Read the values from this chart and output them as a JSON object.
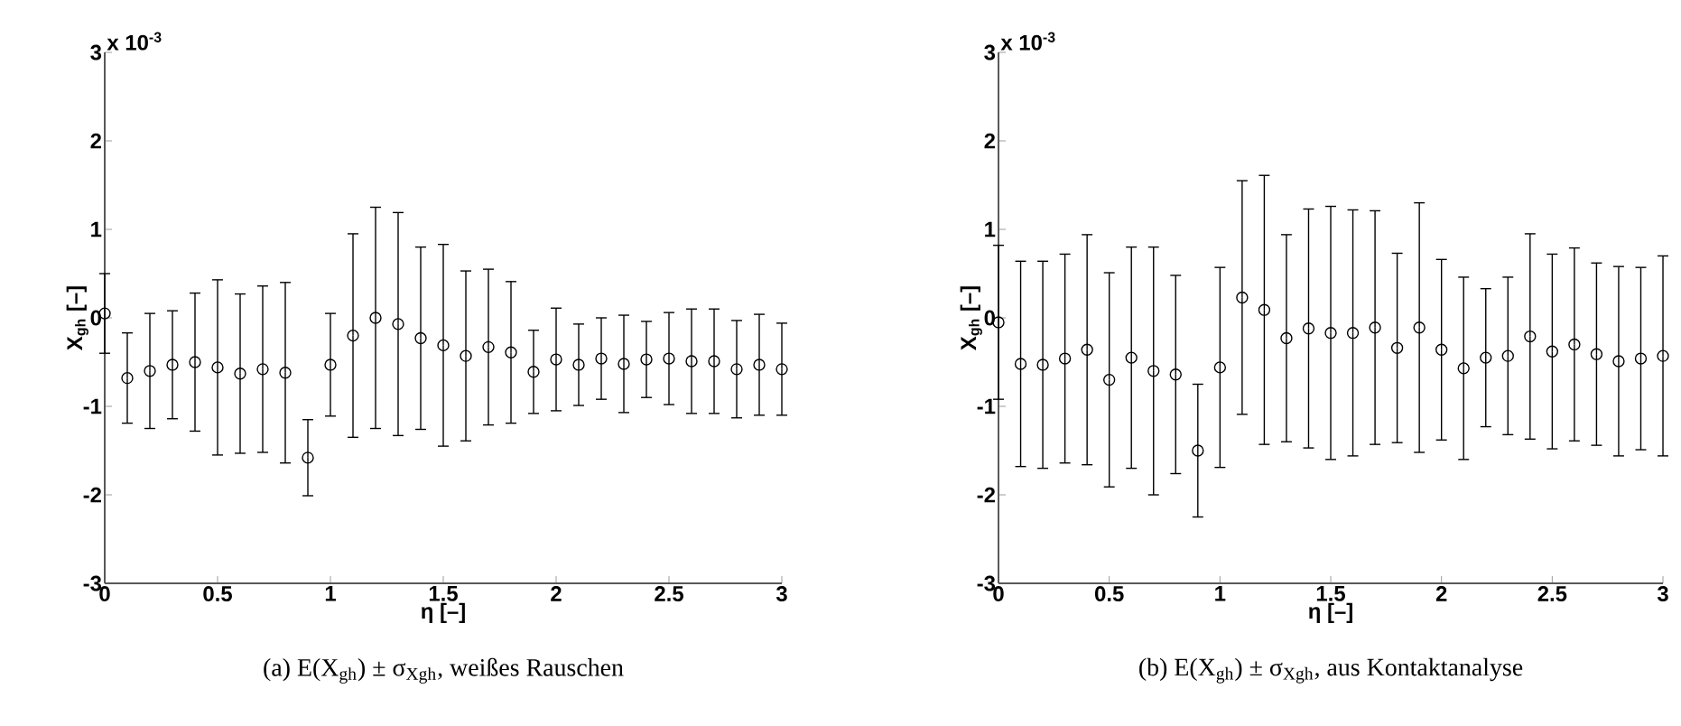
{
  "chart_data": [
    {
      "type": "scatter",
      "title": "(a) E(X$_{gh}$) ± σ$_{Xgh}$, weißes Rauschen",
      "xlabel": "η [–]",
      "ylabel": "X$_{gh}$ [–]",
      "annotations": [
        "x 10$^{-3}$"
      ],
      "x": [
        0,
        0.1,
        0.2,
        0.3,
        0.4,
        0.5,
        0.6,
        0.7,
        0.8,
        0.9,
        1.0,
        1.1,
        1.2,
        1.3,
        1.4,
        1.5,
        1.6,
        1.7,
        1.8,
        1.9,
        2.0,
        2.1,
        2.2,
        2.3,
        2.4,
        2.5,
        2.6,
        2.7,
        2.8,
        2.9,
        3.0
      ],
      "values": [
        0.05,
        -0.68,
        -0.6,
        -0.53,
        -0.5,
        -0.56,
        -0.63,
        -0.58,
        -0.62,
        -1.58,
        -0.53,
        -0.2,
        0.0,
        -0.07,
        -0.23,
        -0.31,
        -0.43,
        -0.33,
        -0.39,
        -0.61,
        -0.47,
        -0.53,
        -0.46,
        -0.52,
        -0.47,
        -0.46,
        -0.49,
        -0.49,
        -0.58,
        -0.53,
        -0.58
      ],
      "errors": [
        0.45,
        0.51,
        0.65,
        0.61,
        0.78,
        0.99,
        0.9,
        0.94,
        1.02,
        0.43,
        0.58,
        1.15,
        1.25,
        1.26,
        1.03,
        1.14,
        0.96,
        0.88,
        0.8,
        0.47,
        0.58,
        0.46,
        0.46,
        0.55,
        0.43,
        0.52,
        0.59,
        0.59,
        0.55,
        0.57,
        0.52
      ],
      "color": "#000000",
      "marker": "circle",
      "xlim": [
        0,
        3
      ],
      "ylim": [
        -3,
        3
      ],
      "xticks": [
        0,
        0.5,
        1,
        1.5,
        2,
        2.5,
        3
      ],
      "yticks": [
        -3,
        -2,
        -1,
        0,
        1,
        2,
        3
      ]
    },
    {
      "type": "scatter",
      "title": "(b) E(X$_{gh}$) ± σ$_{Xgh}$, aus Kontaktanalyse",
      "xlabel": "η [–]",
      "ylabel": "X$_{gh}$ [–]",
      "annotations": [
        "x 10$^{-3}$"
      ],
      "x": [
        0,
        0.1,
        0.2,
        0.3,
        0.4,
        0.5,
        0.6,
        0.7,
        0.8,
        0.9,
        1.0,
        1.1,
        1.2,
        1.3,
        1.4,
        1.5,
        1.6,
        1.7,
        1.8,
        1.9,
        2.0,
        2.1,
        2.2,
        2.3,
        2.4,
        2.5,
        2.6,
        2.7,
        2.8,
        2.9,
        3.0
      ],
      "values": [
        -0.05,
        -0.52,
        -0.53,
        -0.46,
        -0.36,
        -0.7,
        -0.45,
        -0.6,
        -0.64,
        -1.5,
        -0.56,
        0.23,
        0.09,
        -0.23,
        -0.12,
        -0.17,
        -0.17,
        -0.11,
        -0.34,
        -0.11,
        -0.36,
        -0.57,
        -0.45,
        -0.43,
        -0.21,
        -0.38,
        -0.3,
        -0.41,
        -0.49,
        -0.46,
        -0.43
      ],
      "errors": [
        0.87,
        1.16,
        1.17,
        1.18,
        1.3,
        1.21,
        1.25,
        1.4,
        1.12,
        0.75,
        1.13,
        1.32,
        1.52,
        1.17,
        1.35,
        1.43,
        1.39,
        1.32,
        1.07,
        1.41,
        1.02,
        1.03,
        0.78,
        0.89,
        1.16,
        1.1,
        1.09,
        1.03,
        1.07,
        1.03,
        1.13
      ],
      "color": "#000000",
      "marker": "circle",
      "xlim": [
        0,
        3
      ],
      "ylim": [
        -3,
        3
      ],
      "xticks": [
        0,
        0.5,
        1,
        1.5,
        2,
        2.5,
        3
      ],
      "yticks": [
        -3,
        -2,
        -1,
        0,
        1,
        2,
        3
      ]
    }
  ]
}
